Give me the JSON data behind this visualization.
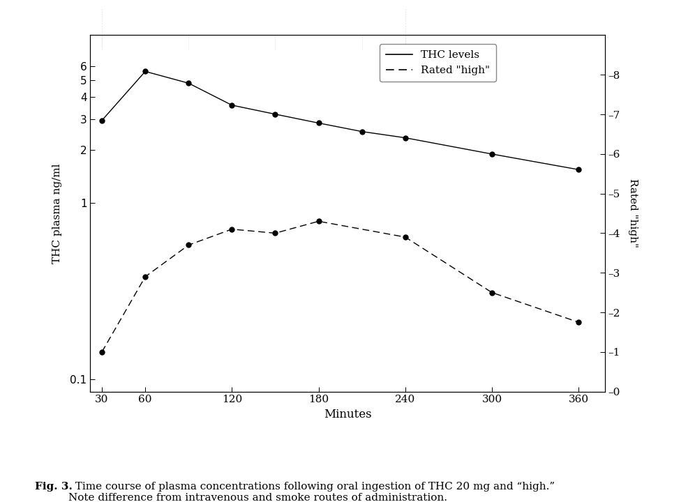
{
  "thc_x": [
    30,
    60,
    90,
    120,
    150,
    180,
    210,
    240,
    300,
    360
  ],
  "thc_y": [
    2.95,
    5.6,
    4.8,
    3.6,
    3.2,
    2.85,
    2.55,
    2.35,
    1.9,
    1.55
  ],
  "rated_x": [
    30,
    60,
    90,
    120,
    150,
    180,
    240,
    300,
    360
  ],
  "rated_y": [
    1.0,
    2.9,
    3.7,
    4.1,
    4.0,
    4.3,
    3.9,
    2.5,
    1.75
  ],
  "xlabel": "Minutes",
  "ylabel_left": "THC plasma ng/ml",
  "ylabel_right": "Rated \"high\"",
  "xticks": [
    30,
    60,
    120,
    180,
    240,
    300,
    360
  ],
  "yticks_left_log": [
    0.1,
    1,
    2,
    3,
    4,
    5,
    6
  ],
  "yticks_right": [
    0,
    1,
    2,
    3,
    4,
    5,
    6,
    7,
    8
  ],
  "ylim_right": [
    0,
    9
  ],
  "legend_thc": "THC levels",
  "legend_rated": "Rated \"high\"",
  "caption_bold": "Fig. 3.",
  "caption_normal": "  Time course of plasma concentrations following oral ingestion of THC 20 mg and “high.”\nNote difference from intravenous and smoke routes of administration.",
  "line_color": "#000000",
  "bg_color": "#ffffff"
}
